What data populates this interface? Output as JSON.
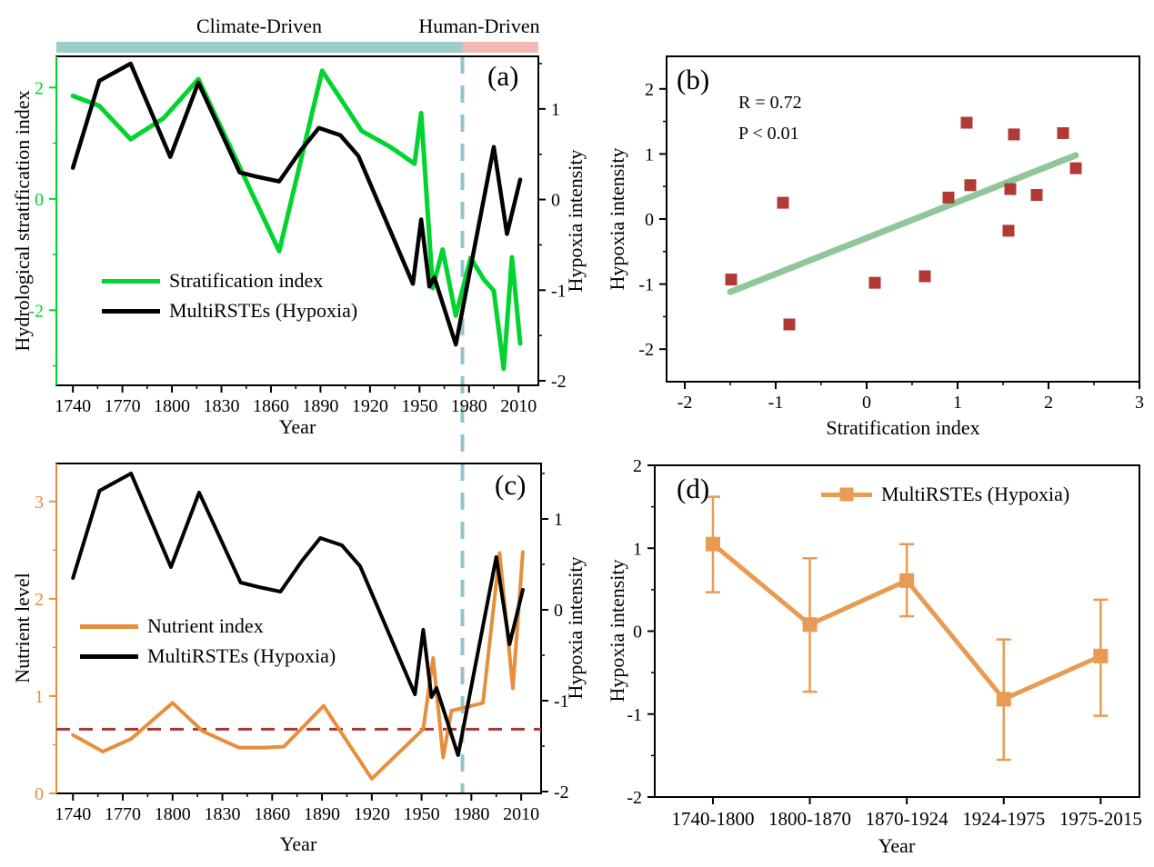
{
  "top_bar": {
    "climate_label": "Climate-Driven",
    "human_label": "Human-Driven",
    "teal_color": "#9BCEC8",
    "pink_color": "#F3B9B5",
    "boundary_year": 1976
  },
  "divider": {
    "year": 1976,
    "color": "#92C5CB"
  },
  "chart_data": [
    {
      "id": "a",
      "type": "line",
      "title": "(a)",
      "xlabel": "Year",
      "x_ticks": [
        1740,
        1770,
        1800,
        1830,
        1860,
        1890,
        1920,
        1950,
        1980,
        2010
      ],
      "x_domain": [
        1730,
        2022
      ],
      "left_axis": {
        "label": "Hydrological stratification index",
        "ticks": [
          -2,
          0,
          2
        ],
        "minor_ticks": [
          -3,
          -1,
          1
        ],
        "domain": [
          -3.35,
          2.56
        ],
        "color": "#00D42E"
      },
      "right_axis": {
        "label": "Hypoxia intensity",
        "ticks": [
          -2,
          -1,
          0,
          1
        ],
        "minor_ticks": [
          -1.5,
          -0.5,
          0.5,
          1.5
        ],
        "domain": [
          -2.05,
          1.58
        ],
        "color": "#000000"
      },
      "series": [
        {
          "name": "Stratification index",
          "axis": "left",
          "color": "#00D42E",
          "width": 5,
          "data": [
            [
              1740,
              1.85
            ],
            [
              1756,
              1.67
            ],
            [
              1775,
              1.07
            ],
            [
              1795,
              1.45
            ],
            [
              1816,
              2.15
            ],
            [
              1865,
              -0.94
            ],
            [
              1891,
              2.3
            ],
            [
              1915,
              1.22
            ],
            [
              1933,
              0.92
            ],
            [
              1947,
              0.63
            ],
            [
              1951,
              1.54
            ],
            [
              1958,
              -1.6
            ],
            [
              1964,
              -0.91
            ],
            [
              1972,
              -2.1
            ],
            [
              1981,
              -1.06
            ],
            [
              1989,
              -1.45
            ],
            [
              1995,
              -1.65
            ],
            [
              2001,
              -3.05
            ],
            [
              2006,
              -1.05
            ],
            [
              2011,
              -2.6
            ]
          ]
        },
        {
          "name": "MultiRSTEs (Hypoxia)",
          "axis": "right",
          "color": "#000000",
          "width": 4.5,
          "data": [
            [
              1740,
              0.35
            ],
            [
              1756,
              1.31
            ],
            [
              1775,
              1.5
            ],
            [
              1799,
              0.47
            ],
            [
              1816,
              1.29
            ],
            [
              1841,
              0.3
            ],
            [
              1852,
              0.25
            ],
            [
              1865,
              0.2
            ],
            [
              1878,
              0.54
            ],
            [
              1889,
              0.79
            ],
            [
              1902,
              0.71
            ],
            [
              1913,
              0.48
            ],
            [
              1946,
              -0.93
            ],
            [
              1951,
              -0.22
            ],
            [
              1956,
              -0.96
            ],
            [
              1959,
              -0.86
            ],
            [
              1972,
              -1.6
            ],
            [
              1995,
              0.58
            ],
            [
              2003,
              -0.38
            ],
            [
              2011,
              0.22
            ]
          ]
        }
      ]
    },
    {
      "id": "b",
      "type": "scatter",
      "title": "(b)",
      "xlabel": "Stratification index",
      "ylabel": "Hypoxia intensity",
      "x_ticks": [
        -2,
        -1,
        0,
        1,
        2,
        3
      ],
      "y_ticks": [
        -2,
        -1,
        0,
        1,
        2
      ],
      "x_domain": [
        -2.2,
        3.0
      ],
      "y_domain": [
        -2.5,
        2.5
      ],
      "annotation": {
        "r_text": "R = 0.72",
        "p_text": "P < 0.01"
      },
      "marker_color": "#B23A34",
      "points": [
        [
          -1.49,
          -0.93
        ],
        [
          -0.92,
          0.25
        ],
        [
          -0.85,
          -1.62
        ],
        [
          0.09,
          -0.98
        ],
        [
          0.64,
          -0.88
        ],
        [
          0.9,
          0.33
        ],
        [
          1.1,
          1.48
        ],
        [
          1.14,
          0.52
        ],
        [
          1.56,
          -0.18
        ],
        [
          1.58,
          0.46
        ],
        [
          1.62,
          1.3
        ],
        [
          1.87,
          0.37
        ],
        [
          2.16,
          1.32
        ],
        [
          2.3,
          0.78
        ]
      ],
      "trend": {
        "x1": -1.5,
        "y1": -1.12,
        "x2": 2.3,
        "y2": 0.98,
        "color": "#8FC79B",
        "width": 7
      }
    },
    {
      "id": "c",
      "type": "line",
      "title": "(c)",
      "xlabel": "Year",
      "x_ticks": [
        1740,
        1770,
        1800,
        1830,
        1860,
        1890,
        1920,
        1950,
        1980,
        2010
      ],
      "x_domain": [
        1730,
        2022
      ],
      "left_axis": {
        "label": "Nutrient level",
        "ticks": [
          0,
          1,
          2,
          3
        ],
        "minor_ticks": [
          0.5,
          1.5,
          2.5
        ],
        "domain": [
          0,
          3.39
        ],
        "color": "#E78E3C"
      },
      "right_axis": {
        "label": "Hypoxia intensity",
        "ticks": [
          -2,
          -1,
          0,
          1
        ],
        "minor_ticks": [
          -1.5,
          -0.5,
          0.5,
          1.5
        ],
        "domain": [
          -2.02,
          1.61
        ],
        "color": "#000000"
      },
      "threshold": {
        "value": 0.66,
        "color": "#A63832"
      },
      "series": [
        {
          "name": "Nutrient index",
          "axis": "left",
          "color": "#E78E3C",
          "width": 4,
          "data": [
            [
              1740,
              0.6
            ],
            [
              1758,
              0.43
            ],
            [
              1775,
              0.56
            ],
            [
              1800,
              0.93
            ],
            [
              1818,
              0.64
            ],
            [
              1840,
              0.47
            ],
            [
              1855,
              0.47
            ],
            [
              1867,
              0.48
            ],
            [
              1891,
              0.9
            ],
            [
              1920,
              0.15
            ],
            [
              1951,
              0.66
            ],
            [
              1957,
              1.39
            ],
            [
              1963,
              0.37
            ],
            [
              1968,
              0.85
            ],
            [
              1978,
              0.89
            ],
            [
              1987,
              0.93
            ],
            [
              1997,
              2.47
            ],
            [
              2005,
              1.08
            ],
            [
              2011,
              2.48
            ]
          ]
        },
        {
          "name": "MultiRSTEs (Hypoxia)",
          "axis": "right",
          "color": "#000000",
          "width": 4,
          "data": [
            [
              1740,
              0.35
            ],
            [
              1756,
              1.31
            ],
            [
              1775,
              1.5
            ],
            [
              1799,
              0.47
            ],
            [
              1816,
              1.29
            ],
            [
              1841,
              0.3
            ],
            [
              1852,
              0.25
            ],
            [
              1865,
              0.2
            ],
            [
              1878,
              0.54
            ],
            [
              1889,
              0.79
            ],
            [
              1902,
              0.71
            ],
            [
              1913,
              0.48
            ],
            [
              1946,
              -0.93
            ],
            [
              1951,
              -0.22
            ],
            [
              1956,
              -0.96
            ],
            [
              1959,
              -0.86
            ],
            [
              1972,
              -1.6
            ],
            [
              1995,
              0.58
            ],
            [
              2003,
              -0.38
            ],
            [
              2011,
              0.22
            ]
          ]
        }
      ]
    },
    {
      "id": "d",
      "type": "errorbar",
      "title": "(d)",
      "xlabel": "Year",
      "ylabel": "Hypoxia intensity",
      "legend": "MultiRSTEs (Hypoxia)",
      "color": "#E89B52",
      "categories": [
        "1740-1800",
        "1800-1870",
        "1870-1924",
        "1924-1975",
        "1975-2015"
      ],
      "values": [
        1.05,
        0.08,
        0.61,
        -0.82,
        -0.3
      ],
      "err_low": [
        0.47,
        -0.73,
        0.18,
        -1.55,
        -1.02
      ],
      "err_high": [
        1.62,
        0.88,
        1.05,
        -0.1,
        0.38
      ],
      "y_ticks": [
        -2,
        -1,
        0,
        1,
        2
      ],
      "y_minor_ticks": [
        -1.5,
        -0.5,
        0.5,
        1.5
      ],
      "y_domain": [
        -2,
        2
      ]
    }
  ]
}
